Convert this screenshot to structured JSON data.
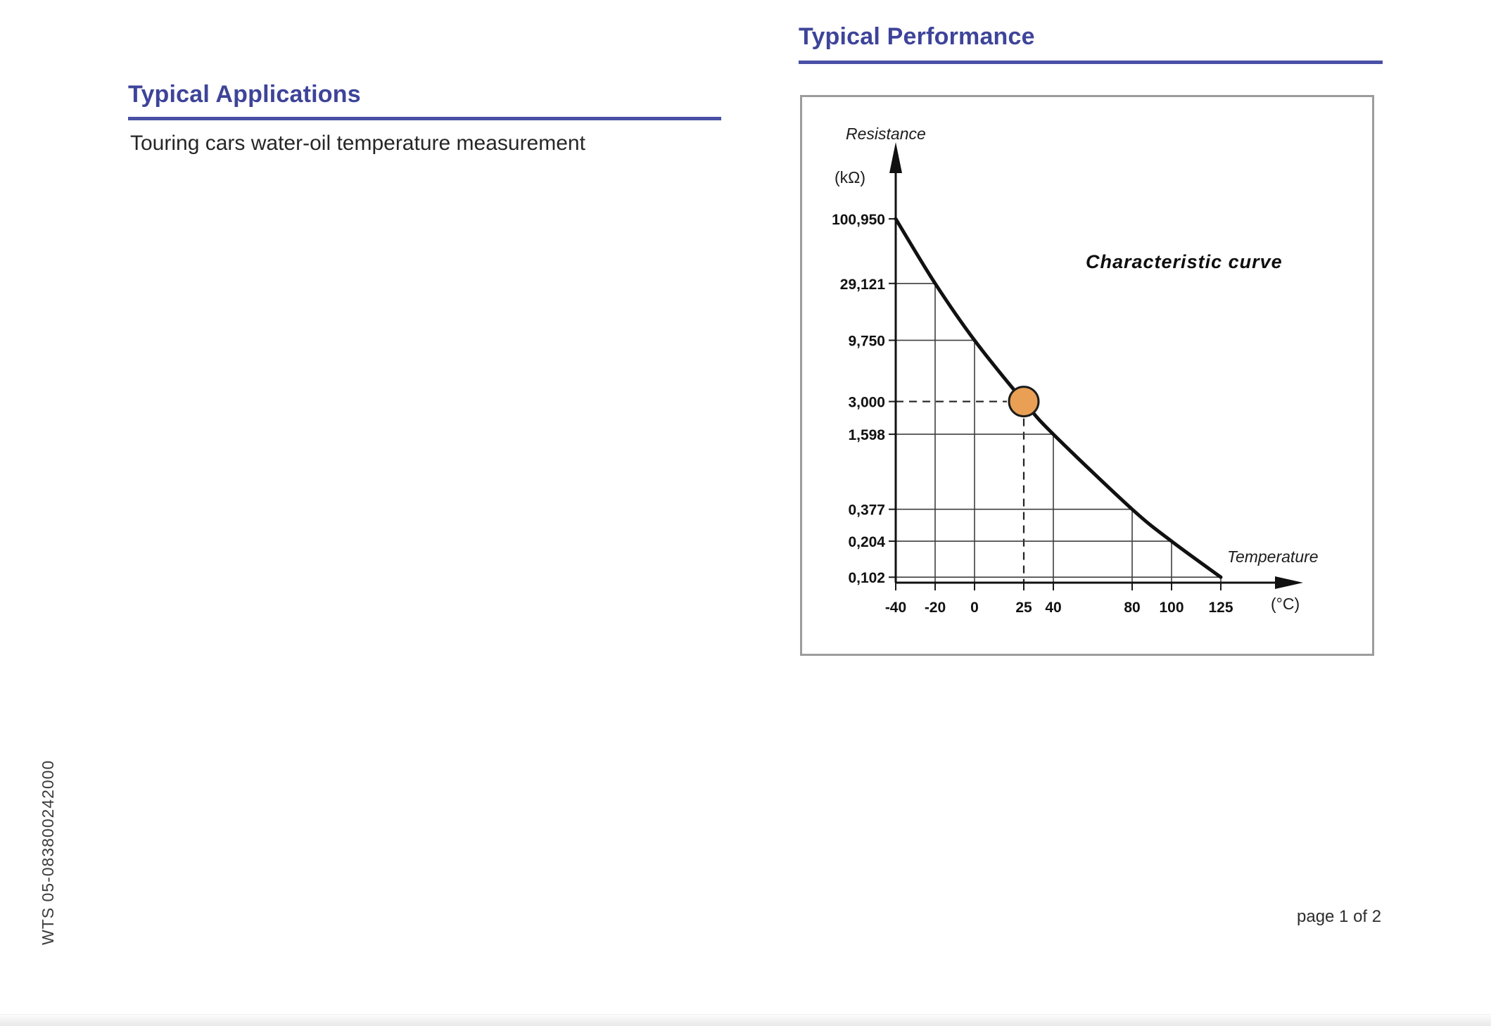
{
  "page": {
    "side_label": "WTS 05-083800242000",
    "page_indicator": "page 1 of 2"
  },
  "colors": {
    "heading": "#3e4499",
    "heading_underline": "#4a50a5",
    "chart_frame_border": "#9c9c9c",
    "marker_orange": "#E9A054",
    "ink": "#111111"
  },
  "sections": {
    "applications": {
      "title": "Typical Applications",
      "body": "Touring cars water-oil temperature measurement"
    },
    "performance": {
      "title": "Typical Performance"
    }
  },
  "chart_data": {
    "type": "line",
    "title": "Characteristic curve",
    "xlabel": "Temperature",
    "x_unit": "(°C)",
    "ylabel": "Resistance",
    "y_unit": "(kΩ)",
    "x": [
      -40,
      -20,
      0,
      25,
      40,
      80,
      100,
      125
    ],
    "x_tick_labels": [
      "-40",
      "-20",
      "0",
      "25",
      "40",
      "80",
      "100",
      "125"
    ],
    "y_values_kohm": [
      100.95,
      29.121,
      9.75,
      3.0,
      1.598,
      0.377,
      0.204,
      0.102
    ],
    "y_tick_labels": [
      "100,950",
      "29,121",
      "9,750",
      "3,000",
      "1,598",
      "0,377",
      "0,204",
      "0,102"
    ],
    "y_scale": "log",
    "axis_ranges": {
      "x_min": -40,
      "x_max": 125,
      "y_min_kohm": 0.102,
      "y_max_kohm": 100.95
    },
    "highlight_point": {
      "x": 25,
      "y_kohm": 3.0,
      "y_label": "3,000",
      "marker_color": "#E9A054"
    },
    "dashed_guides_at": {
      "x": 25,
      "y_kohm": 3.0
    },
    "grid": "stepped-to-curve",
    "legend": "none"
  }
}
